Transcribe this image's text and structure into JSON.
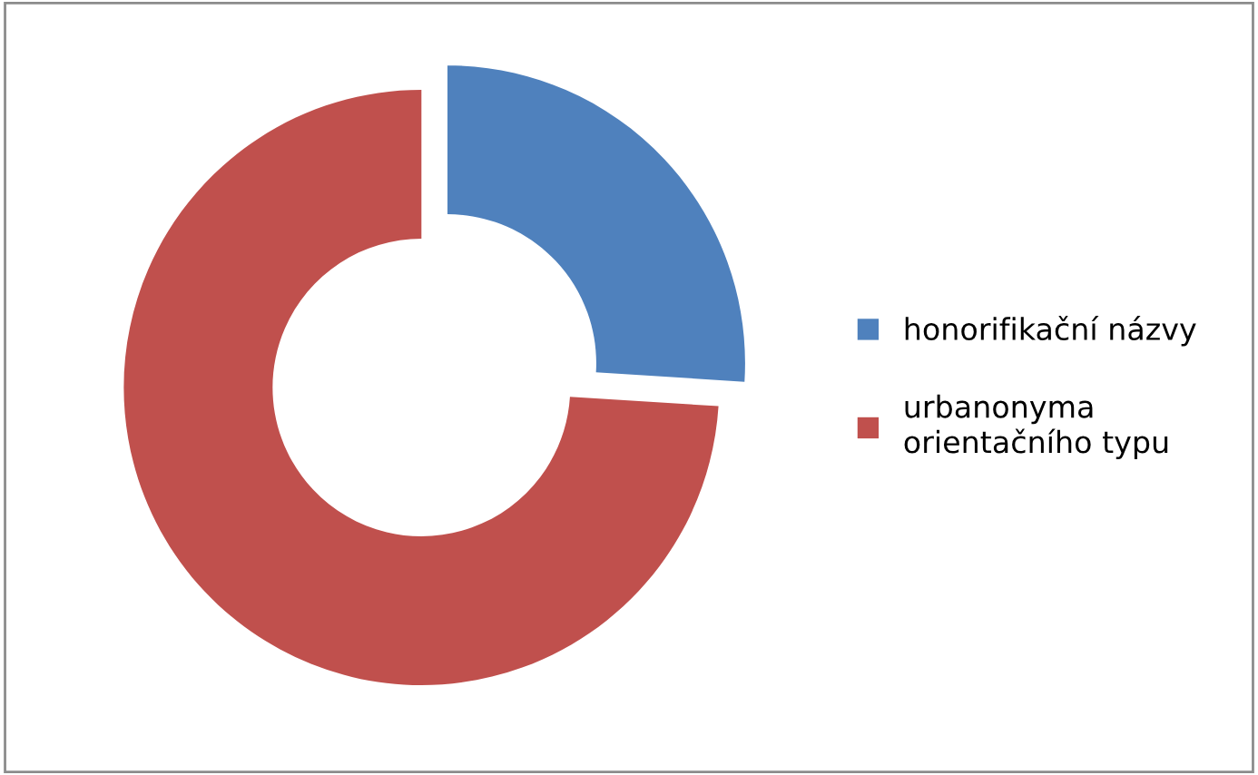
{
  "chart_data": {
    "type": "donut",
    "categories": [
      "honorifikační názvy",
      "urbanonyma\norientačního typu"
    ],
    "values": [
      26,
      74
    ],
    "colors": [
      "#4f81bd",
      "#c0504d"
    ],
    "legend": "right"
  }
}
